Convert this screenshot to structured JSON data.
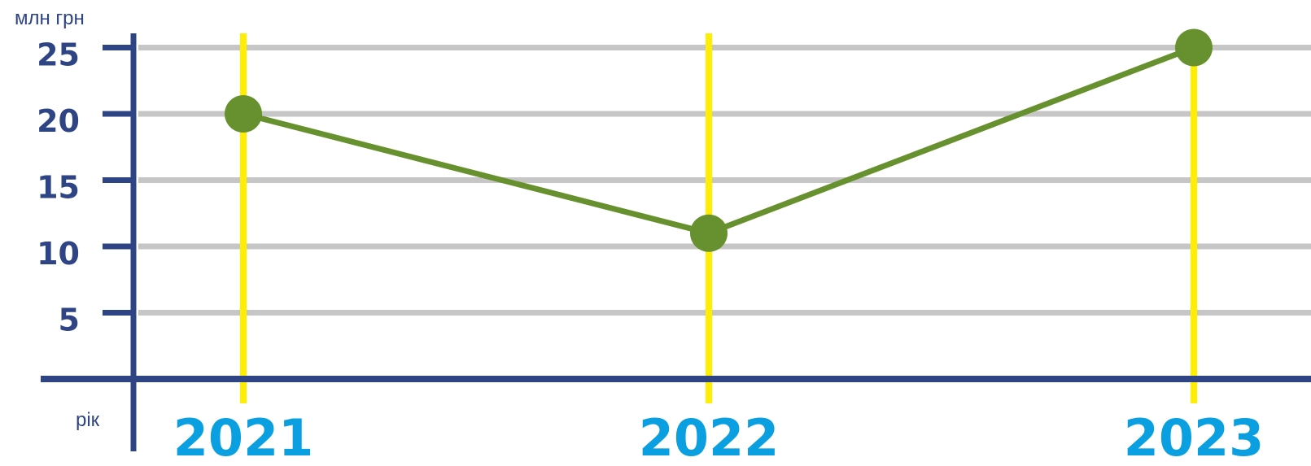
{
  "colors": {
    "axis": "#2e4485",
    "grid": "#c6c6c6",
    "year_guides": "#ffee00",
    "series": "#67912e",
    "year_labels": "#0a9fe0"
  },
  "chart_data": {
    "type": "line",
    "ylabel": "млн грн",
    "xlabel": "рік",
    "categories": [
      "2021",
      "2022",
      "2023"
    ],
    "series": [
      {
        "values": [
          20,
          11,
          25
        ]
      }
    ],
    "yticks": [
      5,
      10,
      15,
      20,
      25
    ],
    "ylim": [
      0,
      25
    ],
    "grid": true
  }
}
